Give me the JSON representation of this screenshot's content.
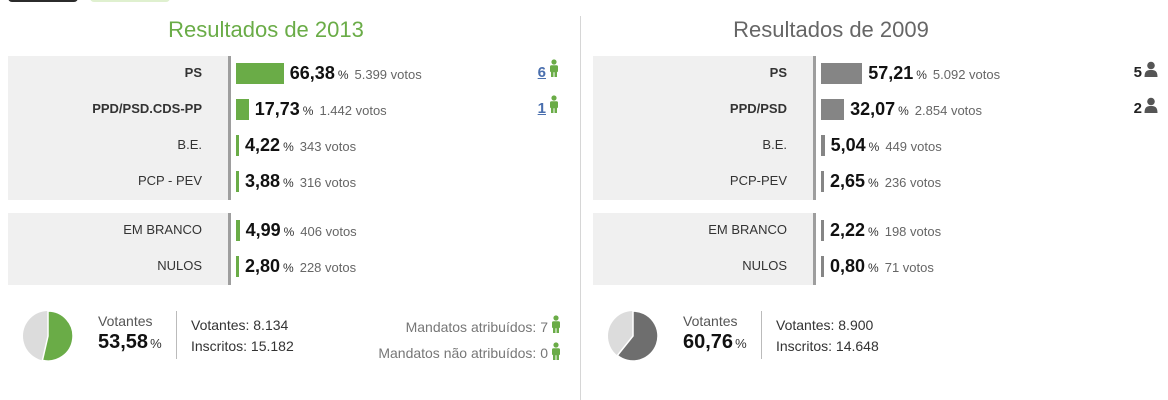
{
  "colors": {
    "accent_2013": "#6aac47",
    "accent_2009": "#858585",
    "link": "#4a6fae"
  },
  "p2013": {
    "title": "Resultados de 2013",
    "parties": [
      {
        "name": "PS",
        "bold": true,
        "pct": "66,38",
        "pct_value": 66.38,
        "votes": "5.399 votos",
        "seats": "6"
      },
      {
        "name": "PPD/PSD.CDS-PP",
        "bold": true,
        "pct": "17,73",
        "pct_value": 17.73,
        "votes": "1.442 votos",
        "seats": "1"
      },
      {
        "name": "B.E.",
        "bold": false,
        "pct": "4,22",
        "pct_value": 4.22,
        "votes": "343 votos",
        "seats": ""
      },
      {
        "name": "PCP - PEV",
        "bold": false,
        "pct": "3,88",
        "pct_value": 3.88,
        "votes": "316 votos",
        "seats": ""
      }
    ],
    "others": [
      {
        "name": "EM BRANCO",
        "pct": "4,99",
        "pct_value": 4.99,
        "votes": "406 votos"
      },
      {
        "name": "NULOS",
        "pct": "2,80",
        "pct_value": 2.8,
        "votes": "228 votos"
      }
    ],
    "turnout_label": "Votantes",
    "turnout_pct": "53,58",
    "turnout_value": 53.58,
    "votantes": "Votantes: 8.134",
    "inscritos": "Inscritos: 15.182",
    "mandatos_atribuidos": "Mandatos atribuídos: 7",
    "mandatos_nao_atribuidos": "Mandatos não atribuídos: 0"
  },
  "p2009": {
    "title": "Resultados de 2009",
    "parties": [
      {
        "name": "PS",
        "bold": true,
        "pct": "57,21",
        "pct_value": 57.21,
        "votes": "5.092 votos",
        "seats": "5"
      },
      {
        "name": "PPD/PSD",
        "bold": true,
        "pct": "32,07",
        "pct_value": 32.07,
        "votes": "2.854 votos",
        "seats": "2"
      },
      {
        "name": "B.E.",
        "bold": false,
        "pct": "5,04",
        "pct_value": 5.04,
        "votes": "449 votos",
        "seats": ""
      },
      {
        "name": "PCP-PEV",
        "bold": false,
        "pct": "2,65",
        "pct_value": 2.65,
        "votes": "236 votos",
        "seats": ""
      }
    ],
    "others": [
      {
        "name": "EM BRANCO",
        "pct": "2,22",
        "pct_value": 2.22,
        "votes": "198 votos"
      },
      {
        "name": "NULOS",
        "pct": "0,80",
        "pct_value": 0.8,
        "votes": "71 votos"
      }
    ],
    "turnout_label": "Votantes",
    "turnout_pct": "60,76",
    "turnout_value": 60.76,
    "votantes": "Votantes: 8.900",
    "inscritos": "Inscritos: 14.648"
  }
}
